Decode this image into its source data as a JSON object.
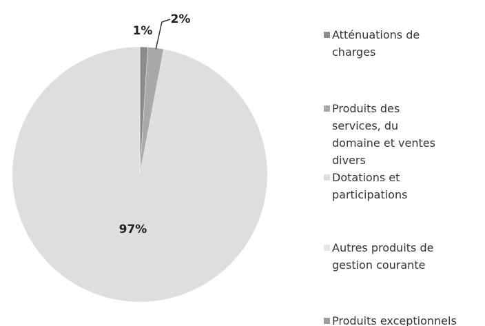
{
  "chart_data": {
    "type": "pie",
    "categories": [
      "Atténuations de charges",
      "Produits des services, du domaine et ventes divers",
      "Dotations et participations",
      "Autres produits de gestion courante",
      "Produits exceptionnels"
    ],
    "values": [
      1,
      2,
      97,
      0,
      0
    ],
    "value_labels": [
      "1%",
      "2%",
      "97%",
      null,
      null
    ],
    "colors": [
      "#8c8c8c",
      "#a9a9a9",
      "#dedede",
      "#e6e6e6",
      "#9c9c9c"
    ],
    "legend": "right"
  }
}
